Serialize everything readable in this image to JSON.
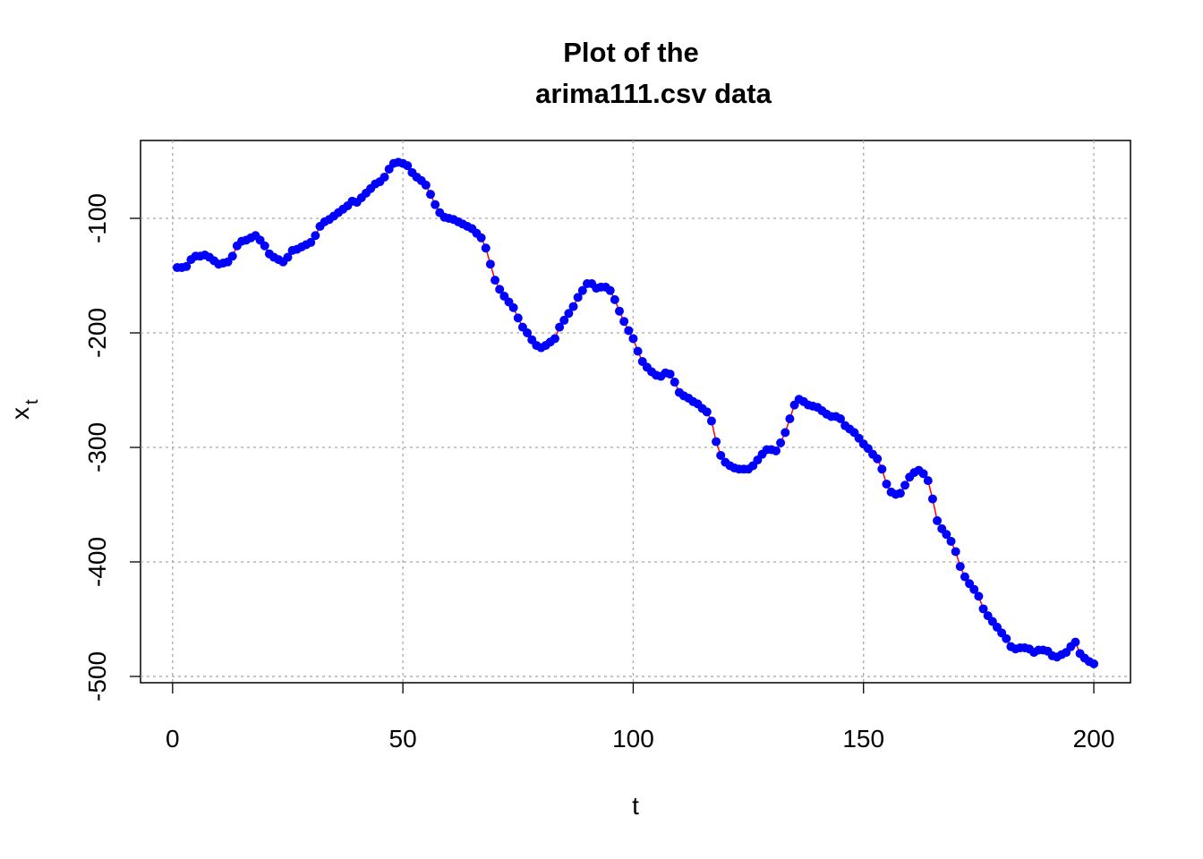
{
  "chart_data": {
    "type": "line",
    "title": [
      "Plot of the",
      "arima111.csv data"
    ],
    "xlabel": "t",
    "ylabel": "x",
    "ylabel_subscript": "t",
    "x": [
      1,
      2,
      3,
      4,
      5,
      6,
      7,
      8,
      9,
      10,
      11,
      12,
      13,
      14,
      15,
      16,
      17,
      18,
      19,
      20,
      21,
      22,
      23,
      24,
      25,
      26,
      27,
      28,
      29,
      30,
      31,
      32,
      33,
      34,
      35,
      36,
      37,
      38,
      39,
      40,
      41,
      42,
      43,
      44,
      45,
      46,
      47,
      48,
      49,
      50,
      51,
      52,
      53,
      54,
      55,
      56,
      57,
      58,
      59,
      60,
      61,
      62,
      63,
      64,
      65,
      66,
      67,
      68,
      69,
      70,
      71,
      72,
      73,
      74,
      75,
      76,
      77,
      78,
      79,
      80,
      81,
      82,
      83,
      84,
      85,
      86,
      87,
      88,
      89,
      90,
      91,
      92,
      93,
      94,
      95,
      96,
      97,
      98,
      99,
      100,
      101,
      102,
      103,
      104,
      105,
      106,
      107,
      108,
      109,
      110,
      111,
      112,
      113,
      114,
      115,
      116,
      117,
      118,
      119,
      120,
      121,
      122,
      123,
      124,
      125,
      126,
      127,
      128,
      129,
      130,
      131,
      132,
      133,
      134,
      135,
      136,
      137,
      138,
      139,
      140,
      141,
      142,
      143,
      144,
      145,
      146,
      147,
      148,
      149,
      150,
      151,
      152,
      153,
      154,
      155,
      156,
      157,
      158,
      159,
      160,
      161,
      162,
      163,
      164,
      165,
      166,
      167,
      168,
      169,
      170,
      171,
      172,
      173,
      174,
      175,
      176,
      177,
      178,
      179,
      180,
      181,
      182,
      183,
      184,
      185,
      186,
      187,
      188,
      189,
      190,
      191,
      192,
      193,
      194,
      195,
      196,
      197,
      198,
      199,
      200
    ],
    "values": [
      -143,
      -143,
      -142,
      -136,
      -133,
      -133,
      -132,
      -134,
      -137,
      -140,
      -139,
      -138,
      -133,
      -124,
      -120,
      -119,
      -117,
      -115,
      -119,
      -124,
      -131,
      -134,
      -136,
      -138,
      -134,
      -128,
      -127,
      -125,
      -123,
      -121,
      -115,
      -107,
      -103,
      -101,
      -98,
      -95,
      -92,
      -89,
      -85,
      -86,
      -82,
      -78,
      -74,
      -70,
      -68,
      -64,
      -57,
      -52,
      -51,
      -52,
      -54,
      -60,
      -64,
      -67,
      -71,
      -79,
      -88,
      -95,
      -99,
      -100,
      -101,
      -103,
      -105,
      -107,
      -109,
      -113,
      -117,
      -126,
      -140,
      -154,
      -162,
      -168,
      -173,
      -178,
      -187,
      -195,
      -200,
      -206,
      -211,
      -213,
      -211,
      -208,
      -205,
      -195,
      -189,
      -183,
      -177,
      -169,
      -163,
      -157,
      -157,
      -161,
      -160,
      -160,
      -163,
      -171,
      -181,
      -190,
      -198,
      -205,
      -216,
      -225,
      -230,
      -234,
      -237,
      -238,
      -235,
      -236,
      -243,
      -252,
      -255,
      -257,
      -260,
      -262,
      -266,
      -269,
      -277,
      -295,
      -307,
      -313,
      -316,
      -318,
      -319,
      -319,
      -319,
      -316,
      -311,
      -306,
      -302,
      -302,
      -303,
      -296,
      -287,
      -275,
      -263,
      -258,
      -260,
      -263,
      -264,
      -265,
      -268,
      -271,
      -273,
      -273,
      -275,
      -281,
      -284,
      -287,
      -292,
      -297,
      -301,
      -306,
      -310,
      -319,
      -332,
      -339,
      -341,
      -340,
      -333,
      -326,
      -322,
      -320,
      -323,
      -329,
      -345,
      -364,
      -371,
      -376,
      -382,
      -391,
      -404,
      -413,
      -419,
      -424,
      -430,
      -441,
      -447,
      -452,
      -457,
      -462,
      -467,
      -474,
      -476,
      -475,
      -475,
      -476,
      -479,
      -477,
      -477,
      -478,
      -482,
      -483,
      -481,
      -479,
      -474,
      -470,
      -480,
      -484,
      -487,
      -489
    ],
    "line_color": "#ff0000",
    "point_color": "#0000ff",
    "xlim": [
      -6.96,
      207.96
    ],
    "ylim": [
      -505.5,
      -32
    ],
    "xticks": [
      0,
      50,
      100,
      150,
      200
    ],
    "yticks": [
      -500,
      -400,
      -300,
      -200,
      -100
    ],
    "grid": true
  }
}
